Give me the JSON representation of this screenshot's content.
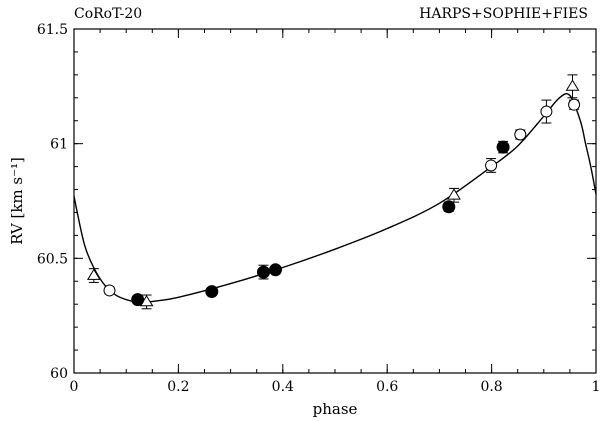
{
  "chart_data": {
    "type": "scatter",
    "annotations": {
      "top_left": "CoRoT-20",
      "top_right": "HARPS+SOPHIE+FIES"
    },
    "xlabel": "phase",
    "ylabel": "RV [km s⁻¹]",
    "xlim": [
      0,
      1
    ],
    "ylim": [
      60,
      61.5
    ],
    "x_ticks": [
      0,
      0.2,
      0.4,
      0.6,
      0.8,
      1
    ],
    "x_tick_labels": [
      "0",
      "0.2",
      "0.4",
      "0.6",
      "0.8",
      "1"
    ],
    "y_ticks": [
      60,
      60.5,
      61,
      61.5
    ],
    "y_tick_labels": [
      "60",
      "60.5",
      "61",
      "61.5"
    ],
    "grid": false,
    "series": [
      {
        "marker": "triangle",
        "points": [
          {
            "x": 0.038,
            "y": 60.425,
            "err": 0.03
          },
          {
            "x": 0.139,
            "y": 60.31,
            "err": 0.03
          },
          {
            "x": 0.728,
            "y": 60.775,
            "err": 0.03
          },
          {
            "x": 0.955,
            "y": 61.25,
            "err": 0.05
          }
        ]
      },
      {
        "marker": "open-circle",
        "points": [
          {
            "x": 0.068,
            "y": 60.36,
            "err": 0.015
          },
          {
            "x": 0.799,
            "y": 60.905,
            "err": 0.03
          },
          {
            "x": 0.855,
            "y": 61.04,
            "err": 0.02
          },
          {
            "x": 0.905,
            "y": 61.14,
            "err": 0.05
          },
          {
            "x": 0.958,
            "y": 61.17,
            "err": 0.02
          }
        ]
      },
      {
        "marker": "filled-circle",
        "points": [
          {
            "x": 0.122,
            "y": 60.32,
            "err": 0.01
          },
          {
            "x": 0.264,
            "y": 60.355,
            "err": 0.01
          },
          {
            "x": 0.363,
            "y": 60.44,
            "err": 0.03
          },
          {
            "x": 0.386,
            "y": 60.45,
            "err": 0.01
          },
          {
            "x": 0.718,
            "y": 60.725,
            "err": 0.02
          },
          {
            "x": 0.822,
            "y": 60.985,
            "err": 0.025
          }
        ]
      }
    ],
    "model_curve": {
      "x": [
        0,
        0.02,
        0.04,
        0.06,
        0.08,
        0.1,
        0.12,
        0.14,
        0.16,
        0.2,
        0.3,
        0.4,
        0.5,
        0.6,
        0.7,
        0.8,
        0.85,
        0.9,
        0.93,
        0.95,
        0.97,
        0.98,
        0.99,
        1
      ],
      "y": [
        60.77,
        60.56,
        60.45,
        60.38,
        60.34,
        60.32,
        60.31,
        60.31,
        60.315,
        60.33,
        60.39,
        60.46,
        60.54,
        60.63,
        60.74,
        60.9,
        60.99,
        61.12,
        61.2,
        61.21,
        61.1,
        61.0,
        60.9,
        60.78
      ]
    }
  }
}
